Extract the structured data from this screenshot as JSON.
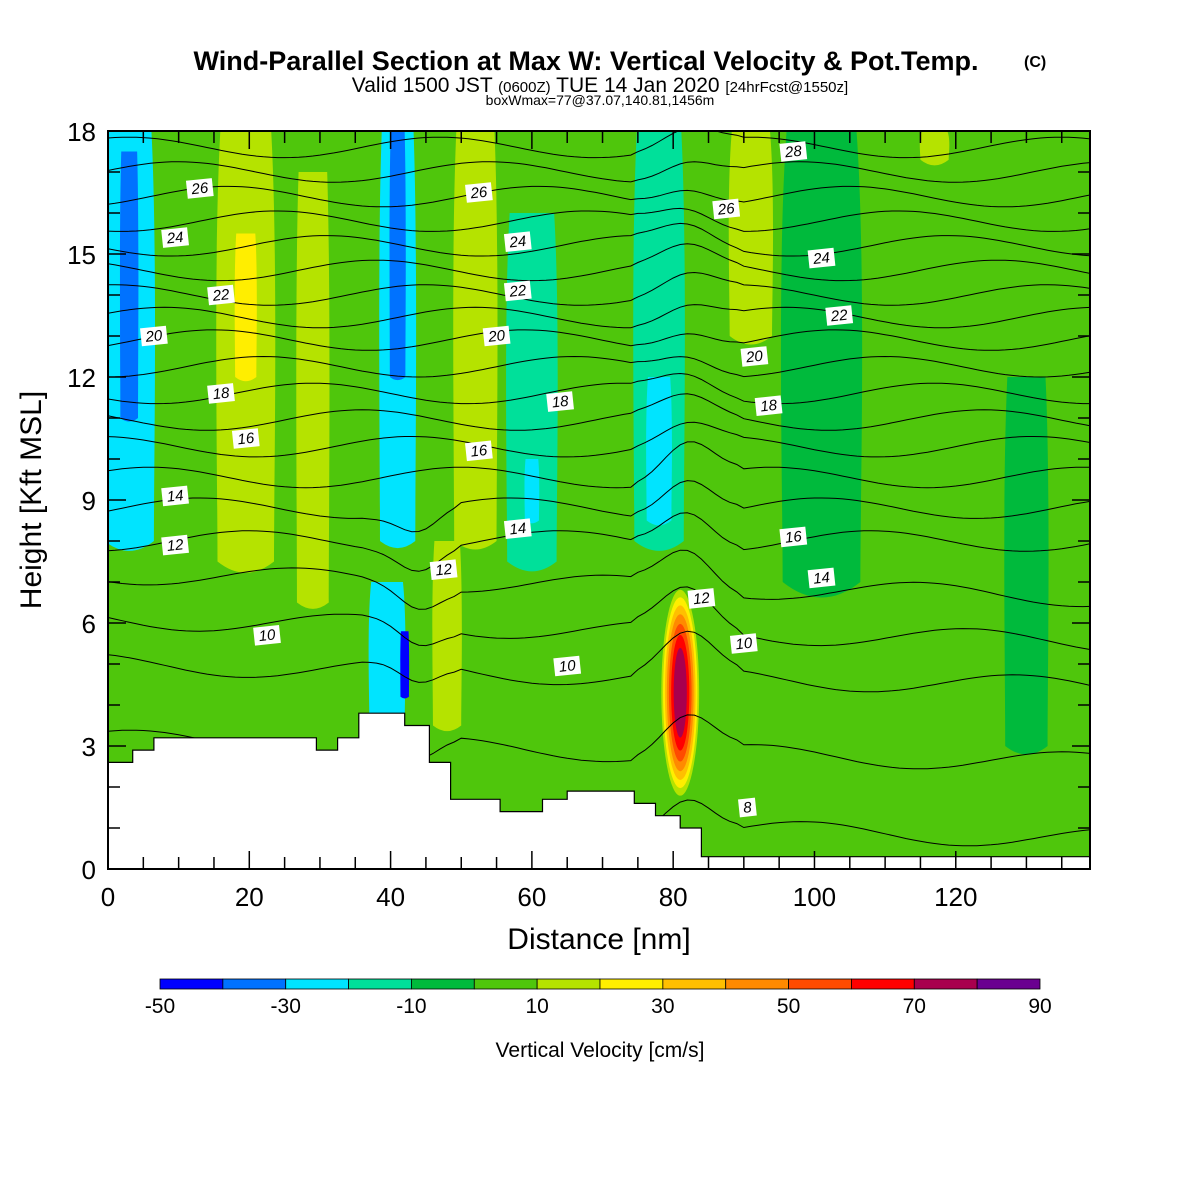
{
  "header": {
    "title": "Wind-Parallel Section at Max W: Vertical Velocity & Pot.Temp.",
    "copyright": "(C)",
    "valid_a": "Valid 1500 JST",
    "valid_b": "(0600Z)",
    "valid_c": "TUE 14 Jan 2020",
    "valid_d": "[24hrFcst@1550z]",
    "boxwmax": "boxWmax=77@37.07,140.81,1456m"
  },
  "chart_data": {
    "type": "heatmap",
    "title": "Wind-Parallel Section at Max W: Vertical Velocity & Pot.Temp.",
    "xlabel": "Distance [nm]",
    "ylabel": "Height [Kft MSL]",
    "xlim": [
      0,
      139
    ],
    "ylim": [
      0,
      18
    ],
    "x_ticks": [
      "0",
      "20",
      "40",
      "60",
      "80",
      "100",
      "120"
    ],
    "y_ticks": [
      "0",
      "3",
      "6",
      "9",
      "12",
      "15",
      "18"
    ],
    "x_tick_values": [
      0,
      20,
      40,
      60,
      80,
      100,
      120
    ],
    "y_tick_values": [
      0,
      3,
      6,
      9,
      12,
      15,
      18
    ],
    "colorbar": {
      "label": "Vertical Velocity [cm/s]",
      "boundaries": [
        -50,
        -40,
        -30,
        -20,
        -10,
        0,
        10,
        20,
        30,
        40,
        50,
        60,
        70,
        80,
        90
      ],
      "tick_labels": [
        "-50",
        "-30",
        "-10",
        "10",
        "30",
        "50",
        "70",
        "90"
      ],
      "tick_values": [
        -50,
        -30,
        -10,
        10,
        30,
        50,
        70,
        90
      ],
      "colors": [
        "#0000ff",
        "#0072ff",
        "#00e4ff",
        "#00e09a",
        "#00ba3c",
        "#4fc60c",
        "#b5e300",
        "#ffee00",
        "#ffbf00",
        "#ff8a00",
        "#ff4b00",
        "#ff0000",
        "#a8004e",
        "#6a0090"
      ]
    },
    "background_w": 5,
    "w_features": [
      {
        "x": 3,
        "w": 7,
        "y0": 8,
        "y1": 18,
        "value": -25
      },
      {
        "x": 3,
        "w": 2.5,
        "y0": 11,
        "y1": 17.5,
        "value": -35
      },
      {
        "x": 19.5,
        "w": 8,
        "y0": 7.5,
        "y1": 18,
        "value": 15
      },
      {
        "x": 19.5,
        "w": 3,
        "y0": 12,
        "y1": 15.5,
        "value": 25
      },
      {
        "x": 29,
        "w": 4.5,
        "y0": 6.5,
        "y1": 17,
        "value": 12
      },
      {
        "x": 41,
        "w": 5,
        "y0": 8,
        "y1": 18,
        "value": -25
      },
      {
        "x": 41,
        "w": 2.2,
        "y0": 12,
        "y1": 18,
        "value": -35
      },
      {
        "x": 39.5,
        "w": 5,
        "y0": 3.5,
        "y1": 7,
        "value": -25
      },
      {
        "x": 42,
        "w": 1.2,
        "y0": 4.2,
        "y1": 5.8,
        "value": -45
      },
      {
        "x": 48,
        "w": 4,
        "y0": 3.5,
        "y1": 8,
        "value": 12
      },
      {
        "x": 52,
        "w": 6,
        "y0": 8,
        "y1": 18,
        "value": 15
      },
      {
        "x": 60,
        "w": 7,
        "y0": 7.5,
        "y1": 16,
        "value": -12
      },
      {
        "x": 60,
        "w": 2,
        "y0": 8.5,
        "y1": 10,
        "value": -25
      },
      {
        "x": 78,
        "w": 7,
        "y0": 8,
        "y1": 18,
        "value": -12
      },
      {
        "x": 78,
        "w": 3.5,
        "y0": 8.5,
        "y1": 12,
        "value": -25
      },
      {
        "x": 91,
        "w": 6,
        "y0": 13,
        "y1": 18,
        "value": 15
      },
      {
        "x": 101,
        "w": 11,
        "y0": 7,
        "y1": 18,
        "value": -3
      },
      {
        "x": 130,
        "w": 6,
        "y0": 3,
        "y1": 12,
        "value": -3
      },
      {
        "x": 117,
        "w": 4,
        "y0": 17.3,
        "y1": 18,
        "value": 15
      }
    ],
    "updraft_core": {
      "x": 81,
      "height_kft": 4.3,
      "half_width": 2.8,
      "half_height": 2.6,
      "max_w": 77
    },
    "contour_levels": [
      8,
      10,
      12,
      14,
      16,
      18,
      20,
      22,
      24,
      26,
      28
    ],
    "contour_labels": [
      {
        "label": "8",
        "x": 90.5,
        "y": 1.5
      },
      {
        "label": "10",
        "x": 22.5,
        "y": 5.7
      },
      {
        "label": "10",
        "x": 65,
        "y": 4.95
      },
      {
        "label": "10",
        "x": 90,
        "y": 5.5
      },
      {
        "label": "12",
        "x": 9.5,
        "y": 7.9
      },
      {
        "label": "12",
        "x": 47.5,
        "y": 7.3
      },
      {
        "label": "12",
        "x": 84,
        "y": 6.6
      },
      {
        "label": "14",
        "x": 9.5,
        "y": 9.1
      },
      {
        "label": "14",
        "x": 58,
        "y": 8.3
      },
      {
        "label": "14",
        "x": 101,
        "y": 7.1
      },
      {
        "label": "16",
        "x": 19.5,
        "y": 10.5
      },
      {
        "label": "16",
        "x": 52.5,
        "y": 10.2
      },
      {
        "label": "16",
        "x": 97,
        "y": 8.1
      },
      {
        "label": "18",
        "x": 16,
        "y": 11.6
      },
      {
        "label": "18",
        "x": 64,
        "y": 11.4
      },
      {
        "label": "18",
        "x": 93.5,
        "y": 11.3
      },
      {
        "label": "20",
        "x": 6.5,
        "y": 13.0
      },
      {
        "label": "20",
        "x": 55,
        "y": 13.0
      },
      {
        "label": "20",
        "x": 91.5,
        "y": 12.5
      },
      {
        "label": "22",
        "x": 16,
        "y": 14.0
      },
      {
        "label": "22",
        "x": 58,
        "y": 14.1
      },
      {
        "label": "22",
        "x": 103.5,
        "y": 13.5
      },
      {
        "label": "24",
        "x": 9.5,
        "y": 15.4
      },
      {
        "label": "24",
        "x": 58,
        "y": 15.3
      },
      {
        "label": "24",
        "x": 101,
        "y": 14.9
      },
      {
        "label": "26",
        "x": 13,
        "y": 16.6
      },
      {
        "label": "26",
        "x": 52.5,
        "y": 16.5
      },
      {
        "label": "26",
        "x": 87.5,
        "y": 16.1
      },
      {
        "label": "28",
        "x": 97,
        "y": 17.5
      }
    ],
    "terrain": [
      [
        0,
        2.6
      ],
      [
        3.5,
        2.6
      ],
      [
        3.5,
        2.9
      ],
      [
        6.5,
        2.9
      ],
      [
        6.5,
        3.2
      ],
      [
        29.5,
        3.2
      ],
      [
        29.5,
        2.9
      ],
      [
        32.5,
        2.9
      ],
      [
        32.5,
        3.2
      ],
      [
        35.5,
        3.2
      ],
      [
        35.5,
        3.8
      ],
      [
        42,
        3.8
      ],
      [
        42,
        3.5
      ],
      [
        45.5,
        3.5
      ],
      [
        45.5,
        2.6
      ],
      [
        48.5,
        2.6
      ],
      [
        48.5,
        1.7
      ],
      [
        55.5,
        1.7
      ],
      [
        55.5,
        1.4
      ],
      [
        61.5,
        1.4
      ],
      [
        61.5,
        1.7
      ],
      [
        65,
        1.7
      ],
      [
        65,
        1.9
      ],
      [
        74.5,
        1.9
      ],
      [
        74.5,
        1.6
      ],
      [
        77.5,
        1.6
      ],
      [
        77.5,
        1.3
      ],
      [
        81,
        1.3
      ],
      [
        81,
        1.0
      ],
      [
        84,
        1.0
      ],
      [
        84,
        0.3
      ],
      [
        139,
        0.3
      ]
    ]
  }
}
